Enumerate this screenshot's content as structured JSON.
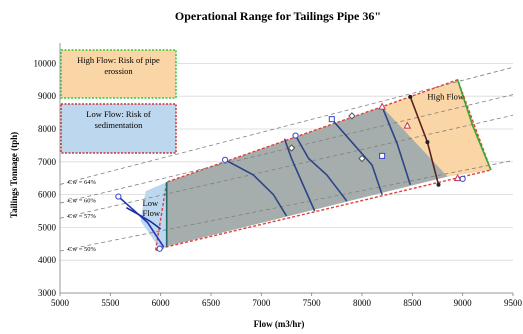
{
  "chart_data": {
    "type": "line",
    "title": "Operational  Range for Tailings  Pipe 36\"",
    "xlabel": "Flow  (m3/hr)",
    "ylabel": "Tailings Tonnage (tph)",
    "xlim": [
      5000,
      9500
    ],
    "ylim": [
      3000,
      10500
    ],
    "x_ticks": [
      "5000",
      "5500",
      "6000",
      "6500",
      "7000",
      "7500",
      "8000",
      "8500",
      "9000",
      "9500"
    ],
    "y_ticks": [
      "3000",
      "4000",
      "5000",
      "6000",
      "7000",
      "8000",
      "9000",
      "10000"
    ],
    "grid": "horizontal",
    "legend_boxes": [
      {
        "text_lines": [
          "High Flow: Risk of pipe",
          "erossion"
        ],
        "fill": "#FAD5A5",
        "border": "#33CC33"
      },
      {
        "text_lines": [
          "Low Flow:  Risk of",
          "sedimentation"
        ],
        "fill": "#BDD7EE",
        "border": "#CC3333"
      }
    ],
    "region_labels": {
      "high": "High Flow",
      "low": [
        "Low",
        "Flow"
      ]
    },
    "cw_lines": [
      {
        "label": "Cw = 64%",
        "x": [
          5000,
          9500
        ],
        "y": [
          6310,
          9880
        ]
      },
      {
        "label": "Cw = 60%",
        "x": [
          5000,
          9500
        ],
        "y": [
          5740,
          9050
        ]
      },
      {
        "label": "Cw = 57%",
        "x": [
          5000,
          9500
        ],
        "y": [
          5280,
          8420
        ]
      },
      {
        "label": "Cw = 50%",
        "x": [
          5000,
          9500
        ],
        "y": [
          4280,
          7040
        ]
      }
    ],
    "operating_region": [
      [
        5950,
        4300
      ],
      [
        6060,
        6380
      ],
      [
        8200,
        8680
      ],
      [
        8950,
        9500
      ],
      [
        9280,
        6750
      ],
      [
        6050,
        4400
      ]
    ],
    "gray_region": [
      [
        6060,
        6380
      ],
      [
        8200,
        8680
      ],
      [
        8850,
        6550
      ],
      [
        6060,
        4420
      ]
    ],
    "low_flow_region": [
      [
        5800,
        5200
      ],
      [
        6000,
        4300
      ],
      [
        6060,
        4420
      ],
      [
        6060,
        6380
      ],
      [
        5850,
        6100
      ]
    ],
    "high_flow_region": [
      [
        8200,
        8680
      ],
      [
        8950,
        9500
      ],
      [
        9280,
        6750
      ],
      [
        8850,
        6550
      ]
    ],
    "series": [
      {
        "name": "",
        "color": "#2233BB",
        "x": [
          5580,
          5870,
          6030
        ],
        "y": [
          5940,
          5150,
          4400
        ]
      },
      {
        "name": "",
        "color": "#1F2F99",
        "x": [
          5660,
          5760,
          5900,
          6000
        ],
        "y": [
          5600,
          5430,
          5180,
          4950
        ]
      },
      {
        "name": "",
        "color": "#2E4486",
        "x": [
          6640,
          6920,
          7120,
          7250
        ],
        "y": [
          7060,
          6600,
          6000,
          5350
        ]
      },
      {
        "name": "",
        "color": "#2E4486",
        "x": [
          7230,
          7300,
          7400,
          7530
        ],
        "y": [
          7700,
          7100,
          6400,
          5500
        ]
      },
      {
        "name": "",
        "color": "#2E4486",
        "x": [
          7340,
          7470,
          7650,
          7850
        ],
        "y": [
          7800,
          7100,
          6600,
          5800
        ]
      },
      {
        "name": "",
        "color": "#2E4486",
        "x": [
          7700,
          7870,
          8100,
          8200
        ],
        "y": [
          8300,
          7700,
          6900,
          6000
        ]
      },
      {
        "name": "",
        "color": "#2E4486",
        "x": [
          8200,
          8350,
          8480
        ],
        "y": [
          8680,
          7550,
          6300
        ]
      },
      {
        "name": "",
        "color": "#33AA33",
        "x": [
          8950,
          9100,
          9280
        ],
        "y": [
          9500,
          8100,
          6750
        ]
      },
      {
        "name": "",
        "color": "#1F6B6B",
        "x": [
          6060,
          6060
        ],
        "y": [
          6380,
          4420
        ]
      },
      {
        "name": "",
        "color": "#5A2020",
        "x": [
          8480,
          8650,
          8760
        ],
        "y": [
          8980,
          7600,
          6300
        ]
      }
    ],
    "markers": [
      {
        "shape": "circle",
        "x": 5580,
        "y": 5940,
        "color": "#3344CC"
      },
      {
        "shape": "circle",
        "x": 5990,
        "y": 4350,
        "color": "#3344CC"
      },
      {
        "shape": "circle",
        "x": 6640,
        "y": 7060,
        "color": "#3344CC"
      },
      {
        "shape": "circle",
        "x": 7340,
        "y": 7800,
        "color": "#3344CC"
      },
      {
        "shape": "square",
        "x": 7700,
        "y": 8300,
        "color": "#3344CC"
      },
      {
        "shape": "square",
        "x": 8200,
        "y": 7180,
        "color": "#3344CC"
      },
      {
        "shape": "diamond",
        "x": 7300,
        "y": 7420,
        "color": "#555555"
      },
      {
        "shape": "diamond",
        "x": 8000,
        "y": 7100,
        "color": "#555555"
      },
      {
        "shape": "diamond",
        "x": 7900,
        "y": 8400,
        "color": "#555555"
      },
      {
        "shape": "triangle",
        "x": 8200,
        "y": 8680,
        "color": "#CC3355"
      },
      {
        "shape": "triangle",
        "x": 8450,
        "y": 8100,
        "color": "#CC3355"
      },
      {
        "shape": "triangle",
        "x": 8950,
        "y": 6500,
        "color": "#CC3355"
      },
      {
        "shape": "dot",
        "x": 8480,
        "y": 8980,
        "color": "#222222"
      },
      {
        "shape": "dot",
        "x": 8650,
        "y": 7600,
        "color": "#222222"
      },
      {
        "shape": "dot",
        "x": 8760,
        "y": 6300,
        "color": "#222222"
      },
      {
        "shape": "circle",
        "x": 9000,
        "y": 6480,
        "color": "#3344CC"
      }
    ]
  }
}
